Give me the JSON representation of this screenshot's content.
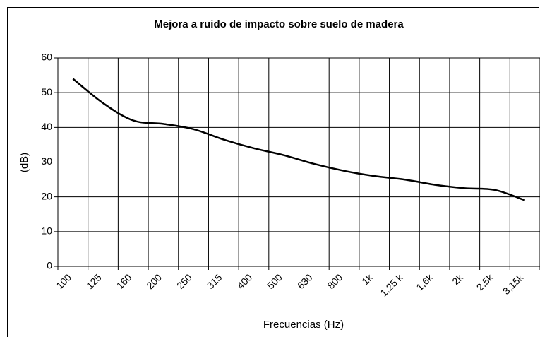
{
  "chart_data": {
    "type": "line",
    "title": "Mejora a ruido de impacto sobre suelo de madera",
    "x_label": "Frecuencias (Hz)",
    "y_label": "(dB)",
    "categories": [
      "100",
      "125",
      "160",
      "200",
      "250",
      "315",
      "400",
      "500",
      "630",
      "800",
      "1k",
      "1,25 k",
      "1,6k",
      "2k",
      "2,5k",
      "3,15k"
    ],
    "values": [
      54,
      47,
      42,
      41,
      39.5,
      36.5,
      34,
      32,
      29.5,
      27.5,
      26,
      25,
      23.5,
      22.5,
      22,
      19
    ],
    "color": "#000000",
    "ylim": [
      0,
      60
    ],
    "yticks": [
      0,
      10,
      20,
      30,
      40,
      50,
      60
    ],
    "grid": true
  }
}
